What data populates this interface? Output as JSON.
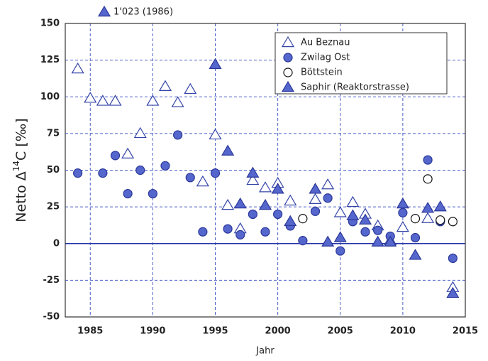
{
  "chart_data": {
    "type": "scatter",
    "xlabel": "Jahr",
    "ylabel": {
      "pre": "Netto Δ",
      "sup": "14",
      "post": "C [‰]"
    },
    "annotation": "1'023 (1986)",
    "xlim": [
      1983,
      2015
    ],
    "ylim": [
      -50,
      150
    ],
    "xticks": [
      1985,
      1990,
      1995,
      2000,
      2005,
      2010,
      2015
    ],
    "yticks": [
      -50,
      -25,
      0,
      25,
      50,
      75,
      100,
      125,
      150
    ],
    "grid": true,
    "legend": "top-right",
    "series": [
      {
        "name": "Au Beznau",
        "marker": "triangle",
        "filled": false,
        "color": "#3444a8",
        "x": [
          1984,
          1985,
          1986,
          1987,
          1988,
          1989,
          1990,
          1991,
          1992,
          1993,
          1994,
          1995,
          1996,
          1997,
          1998,
          1999,
          2000,
          2001,
          2003,
          2004,
          2005,
          2006,
          2007,
          2008,
          2009,
          2010,
          2012,
          2014
        ],
        "values": [
          119,
          99,
          97,
          97,
          61,
          75,
          97,
          107,
          96,
          105,
          42,
          74,
          26,
          10,
          43,
          38,
          41,
          29,
          30,
          40,
          21,
          28,
          20,
          12,
          2,
          11,
          17,
          -30
        ]
      },
      {
        "name": "Zwilag Ost",
        "marker": "circle",
        "filled": true,
        "color": "#5566cc",
        "x": [
          1984,
          1986,
          1987,
          1988,
          1989,
          1990,
          1991,
          1992,
          1993,
          1994,
          1995,
          1996,
          1997,
          1998,
          1999,
          2000,
          2001,
          2002,
          2003,
          2004,
          2005,
          2006,
          2007,
          2008,
          2009,
          2010,
          2011,
          2012,
          2013,
          2014
        ],
        "values": [
          48,
          48,
          60,
          34,
          50,
          34,
          53,
          74,
          45,
          8,
          48,
          10,
          6,
          20,
          8,
          20,
          12,
          2,
          22,
          31,
          -5,
          15,
          8,
          9,
          5,
          21,
          4,
          57,
          15,
          -10
        ]
      },
      {
        "name": "Böttstein",
        "marker": "circle",
        "filled": false,
        "color": "#111111",
        "x": [
          2002,
          2011,
          2012,
          2013,
          2014
        ],
        "values": [
          17,
          17,
          44,
          16,
          15
        ]
      },
      {
        "name": "Saphir (Reaktorstrasse)",
        "marker": "triangle",
        "filled": true,
        "color": "#5566cc",
        "x": [
          1995,
          1996,
          1997,
          1998,
          1999,
          2000,
          2001,
          2003,
          2004,
          2005,
          2006,
          2007,
          2008,
          2009,
          2010,
          2011,
          2012,
          2013,
          2014
        ],
        "values": [
          122,
          63,
          27,
          48,
          26,
          37,
          15,
          37,
          1,
          4,
          19,
          16,
          1,
          1,
          27,
          -8,
          24,
          25,
          -34
        ]
      }
    ]
  }
}
